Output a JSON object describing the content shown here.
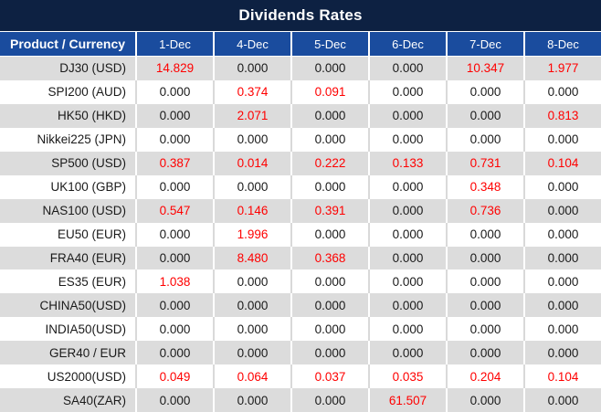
{
  "title": "Dividends Rates",
  "colors": {
    "title_bar_bg": "#0d2142",
    "header_row_bg": "#1a4c9e",
    "stripe_gray": "#dcdcdc",
    "stripe_white": "#ffffff",
    "value_black": "#1a1a1a",
    "value_red": "#ff0000"
  },
  "table": {
    "product_header": "Product / Currency",
    "date_headers": [
      "1-Dec",
      "4-Dec",
      "5-Dec",
      "6-Dec",
      "7-Dec",
      "8-Dec"
    ],
    "rows": [
      {
        "product": "DJ30 (USD)",
        "values": [
          "14.829",
          "0.000",
          "0.000",
          "0.000",
          "10.347",
          "1.977"
        ]
      },
      {
        "product": "SPI200 (AUD)",
        "values": [
          "0.000",
          "0.374",
          "0.091",
          "0.000",
          "0.000",
          "0.000"
        ]
      },
      {
        "product": "HK50 (HKD)",
        "values": [
          "0.000",
          "2.071",
          "0.000",
          "0.000",
          "0.000",
          "0.813"
        ]
      },
      {
        "product": "Nikkei225 (JPN)",
        "values": [
          "0.000",
          "0.000",
          "0.000",
          "0.000",
          "0.000",
          "0.000"
        ]
      },
      {
        "product": "SP500 (USD)",
        "values": [
          "0.387",
          "0.014",
          "0.222",
          "0.133",
          "0.731",
          "0.104"
        ]
      },
      {
        "product": "UK100 (GBP)",
        "values": [
          "0.000",
          "0.000",
          "0.000",
          "0.000",
          "0.348",
          "0.000"
        ]
      },
      {
        "product": "NAS100 (USD)",
        "values": [
          "0.547",
          "0.146",
          "0.391",
          "0.000",
          "0.736",
          "0.000"
        ]
      },
      {
        "product": "EU50 (EUR)",
        "values": [
          "0.000",
          "1.996",
          "0.000",
          "0.000",
          "0.000",
          "0.000"
        ]
      },
      {
        "product": "FRA40 (EUR)",
        "values": [
          "0.000",
          "8.480",
          "0.368",
          "0.000",
          "0.000",
          "0.000"
        ]
      },
      {
        "product": "ES35 (EUR)",
        "values": [
          "1.038",
          "0.000",
          "0.000",
          "0.000",
          "0.000",
          "0.000"
        ]
      },
      {
        "product": "CHINA50(USD)",
        "values": [
          "0.000",
          "0.000",
          "0.000",
          "0.000",
          "0.000",
          "0.000"
        ]
      },
      {
        "product": "INDIA50(USD)",
        "values": [
          "0.000",
          "0.000",
          "0.000",
          "0.000",
          "0.000",
          "0.000"
        ]
      },
      {
        "product": "GER40 / EUR",
        "values": [
          "0.000",
          "0.000",
          "0.000",
          "0.000",
          "0.000",
          "0.000"
        ]
      },
      {
        "product": "US2000(USD)",
        "values": [
          "0.049",
          "0.064",
          "0.037",
          "0.035",
          "0.204",
          "0.104"
        ]
      },
      {
        "product": "SA40(ZAR)",
        "values": [
          "0.000",
          "0.000",
          "0.000",
          "61.507",
          "0.000",
          "0.000"
        ]
      }
    ]
  }
}
